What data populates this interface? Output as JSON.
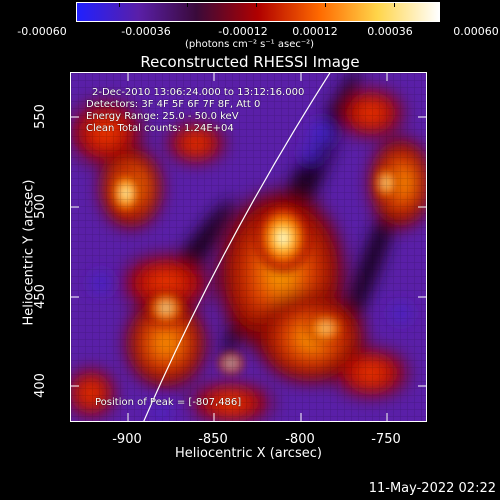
{
  "colorbar": {
    "tick_labels": [
      "-0.00060",
      "-0.00036",
      "-0.00012",
      "0.00012",
      "0.00036",
      "0.00060"
    ],
    "units_label": "(photons cm⁻² s⁻¹ asec⁻²)",
    "colors": [
      "#2020ff",
      "#5a1fa8",
      "#3a0a3a",
      "#b00000",
      "#ff6a00",
      "#ffd54a",
      "#ffffff"
    ]
  },
  "plot": {
    "title": "Reconstructed RHESSI Image",
    "annotations": {
      "time_range": "2-Dec-2010 13:06:24.000 to 13:12:16.000",
      "detectors": "Detectors: 3F 4F 5F 6F 7F 8F, Att 0",
      "energy_range": "Energy Range: 25.0 - 50.0 keV",
      "method_counts": "Clean     Total counts: 1.24E+04",
      "peak_position": "Position of Peak = [-807,486]"
    },
    "xaxis": {
      "label": "Heliocentric X (arcsec)",
      "ticks": [
        "-900",
        "-850",
        "-800",
        "-750"
      ],
      "tick_values": [
        -900,
        -850,
        -800,
        -750
      ]
    },
    "yaxis": {
      "label": "Heliocentric Y (arcsec)",
      "ticks": [
        "400",
        "450",
        "500",
        "550"
      ],
      "tick_values": [
        400,
        450,
        500,
        550
      ]
    }
  },
  "footer": {
    "timestamp": "11-May-2022 02:22"
  }
}
